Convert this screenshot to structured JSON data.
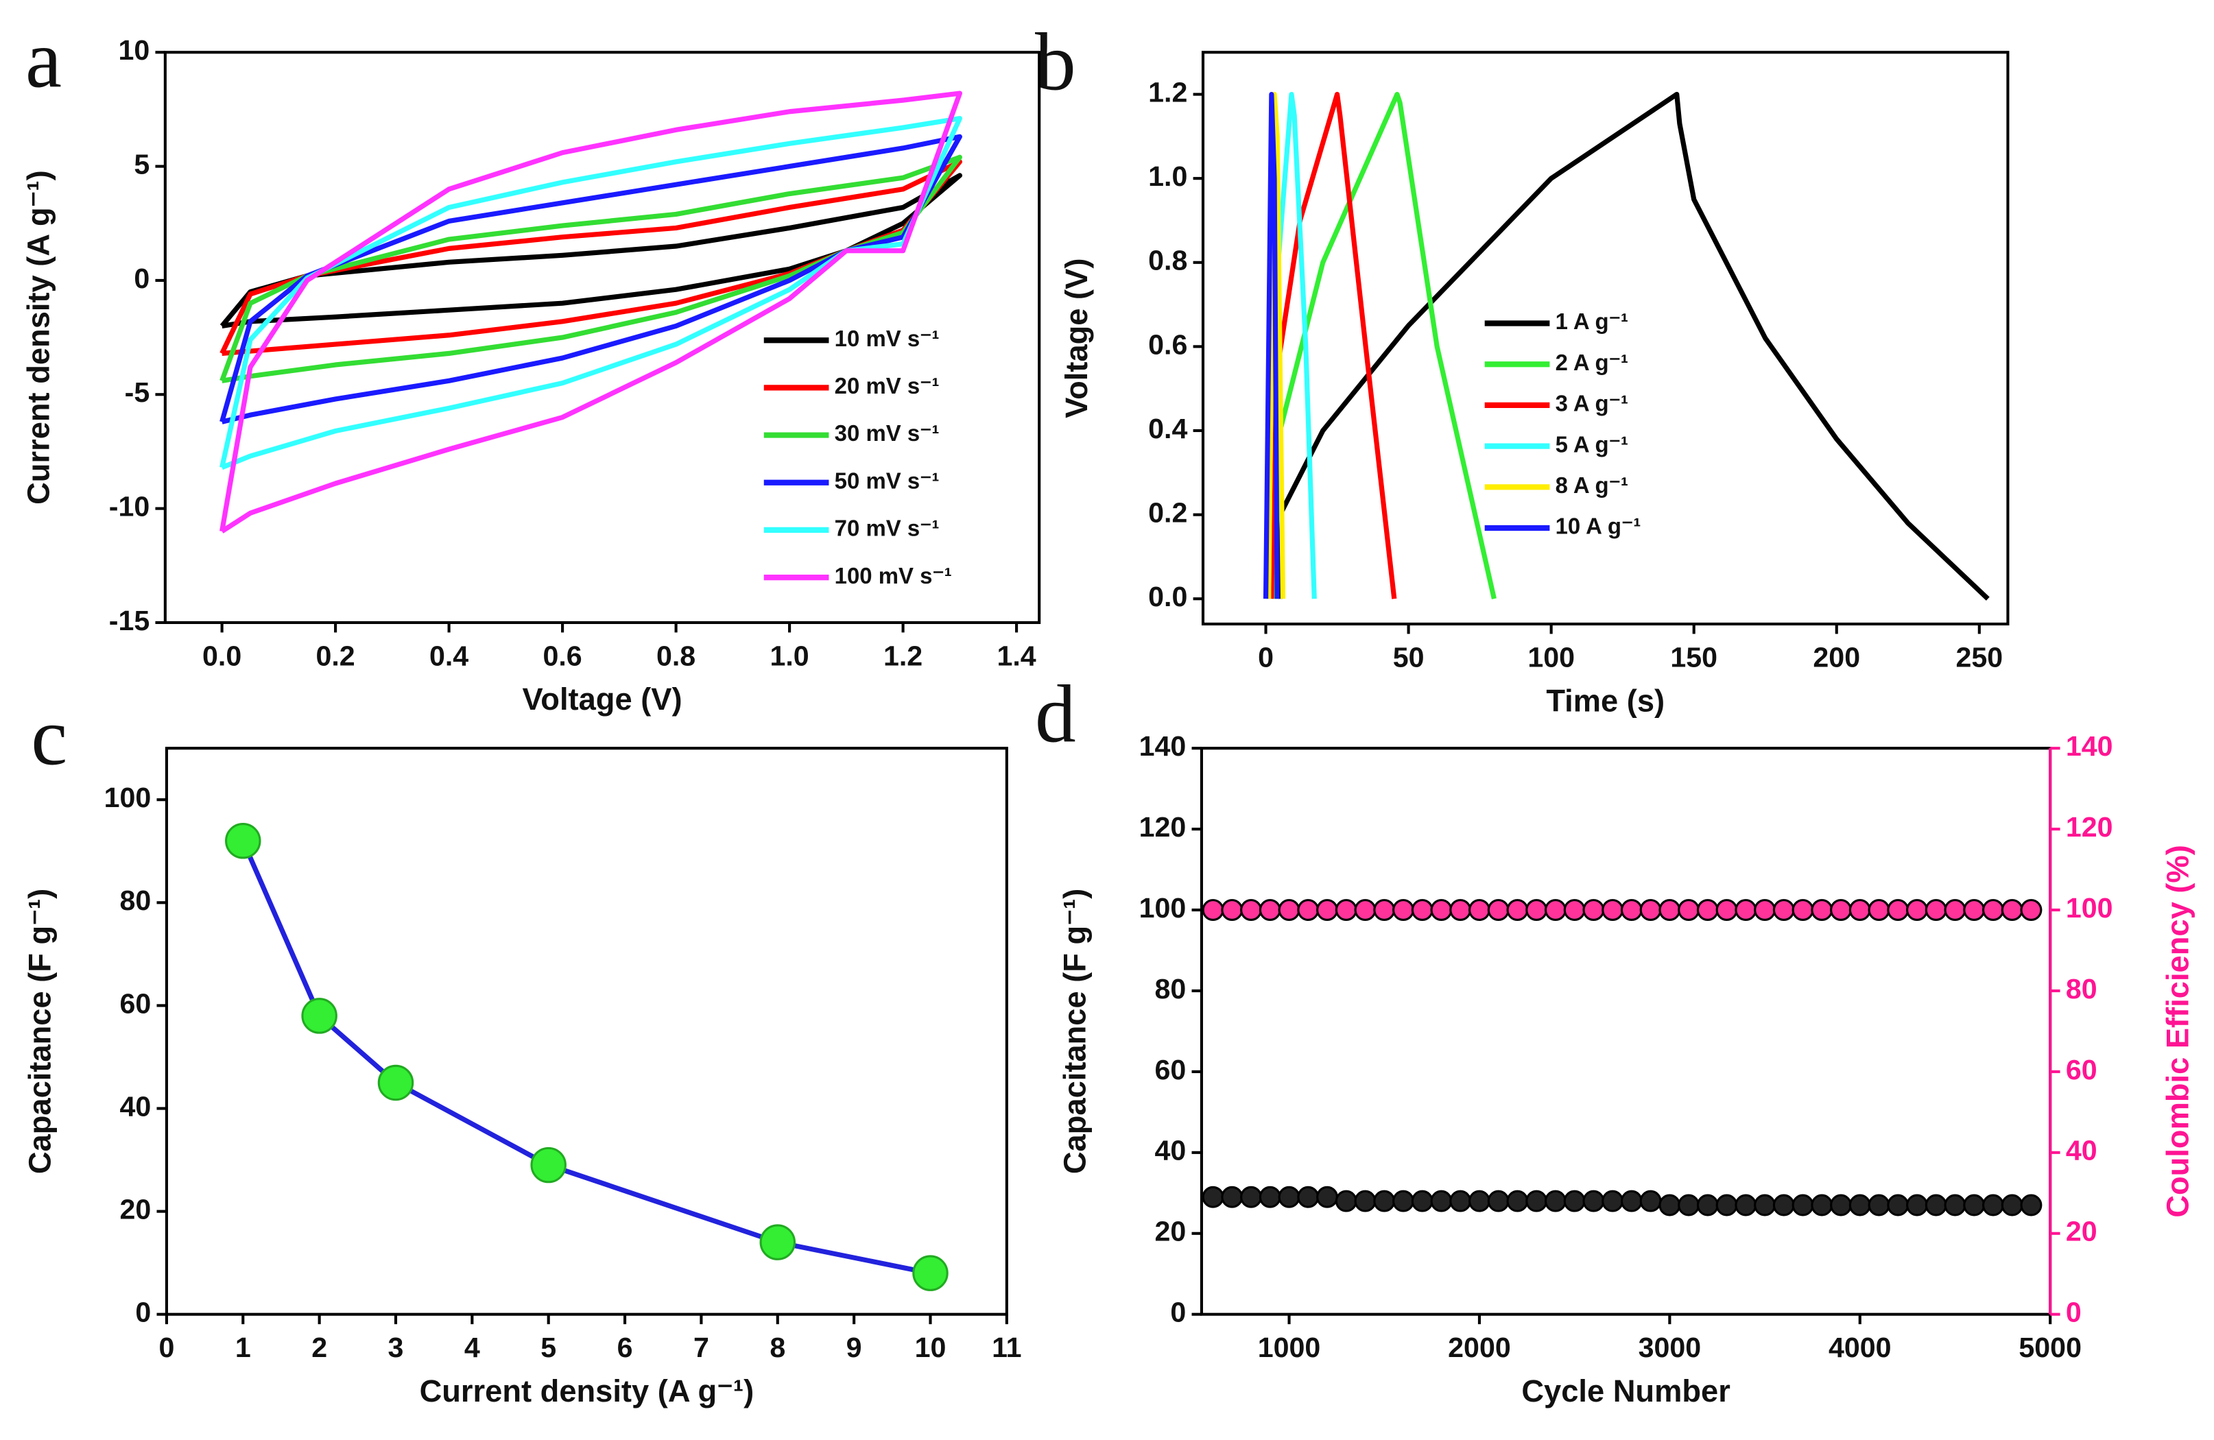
{
  "chart_data": [
    {
      "type": "line",
      "panel": "a",
      "xlabel": "Voltage (V)",
      "ylabel": "Current density (A g⁻¹)",
      "xlim": [
        -0.1,
        1.44
      ],
      "ylim": [
        -15,
        10
      ],
      "xticks": [
        {
          "value": 0,
          "label": "0.0"
        },
        0.2,
        0.4,
        0.6,
        0.8,
        {
          "value": 1,
          "label": "1.0"
        },
        1.2,
        1.4
      ],
      "yticks": [
        -15,
        -10,
        -5,
        0,
        5,
        10
      ],
      "grid": false,
      "legend": "lower right",
      "x": [
        0,
        0.05,
        0.15,
        0.4,
        0.6,
        0.8,
        1.0,
        1.2,
        1.3,
        1.2,
        1.1,
        1.0,
        0.8,
        0.6,
        0.4,
        0.2,
        0.05,
        0
      ],
      "series": [
        {
          "name": "10 mV s⁻¹",
          "color": "#000000",
          "values": [
            -2,
            -0.5,
            0.2,
            0.8,
            1.1,
            1.5,
            2.3,
            3.2,
            4.6,
            2.5,
            1.3,
            0.5,
            -0.4,
            -1.0,
            -1.3,
            -1.6,
            -1.8,
            -2
          ]
        },
        {
          "name": "20 mV s⁻¹",
          "color": "#ff0000",
          "values": [
            -3.2,
            -0.6,
            0.2,
            1.4,
            1.9,
            2.3,
            3.2,
            4.0,
            5.2,
            2.2,
            1.3,
            0.3,
            -1.0,
            -1.8,
            -2.4,
            -2.8,
            -3.1,
            -3.2
          ]
        },
        {
          "name": "30 mV s⁻¹",
          "color": "#33dd33",
          "values": [
            -4.4,
            -1.0,
            0.2,
            1.8,
            2.4,
            2.9,
            3.8,
            4.5,
            5.4,
            2.1,
            1.3,
            0.2,
            -1.4,
            -2.5,
            -3.2,
            -3.7,
            -4.2,
            -4.4
          ]
        },
        {
          "name": "50 mV s⁻¹",
          "color": "#1a1aff",
          "values": [
            -6.2,
            -1.8,
            0.2,
            2.6,
            3.4,
            4.2,
            5.0,
            5.8,
            6.3,
            1.9,
            1.3,
            0,
            -2.0,
            -3.4,
            -4.4,
            -5.2,
            -5.9,
            -6.2
          ]
        },
        {
          "name": "70 mV s⁻¹",
          "color": "#33ffff",
          "values": [
            -8.2,
            -2.6,
            0.1,
            3.2,
            4.3,
            5.2,
            6.0,
            6.7,
            7.1,
            1.6,
            1.3,
            -0.4,
            -2.8,
            -4.5,
            -5.6,
            -6.6,
            -7.7,
            -8.2
          ]
        },
        {
          "name": "100 mV s⁻¹",
          "color": "#ff33ff",
          "values": [
            -11,
            -3.8,
            0,
            4.0,
            5.6,
            6.6,
            7.4,
            7.9,
            8.2,
            1.3,
            1.3,
            -0.8,
            -3.6,
            -6.0,
            -7.4,
            -8.9,
            -10.2,
            -11
          ]
        }
      ]
    },
    {
      "type": "line",
      "panel": "b",
      "xlabel": "Time (s)",
      "ylabel": "Voltage (V)",
      "xlim": [
        -22,
        260
      ],
      "ylim": [
        -0.06,
        1.3
      ],
      "xticks": [
        0,
        50,
        100,
        150,
        200,
        250
      ],
      "yticks": [
        {
          "value": 0,
          "label": "0.0"
        },
        0.2,
        0.4,
        0.6,
        0.8,
        {
          "value": 1,
          "label": "1.0"
        },
        1.2
      ],
      "grid": false,
      "legend": "center",
      "series": [
        {
          "name": "1 A g⁻¹",
          "color": "#000000",
          "x": [
            5,
            5,
            20,
            50,
            100,
            144,
            145,
            150,
            175,
            200,
            225,
            253
          ],
          "values": [
            0,
            0.2,
            0.4,
            0.65,
            1.0,
            1.2,
            1.13,
            0.95,
            0.62,
            0.38,
            0.18,
            0
          ]
        },
        {
          "name": "2 A g⁻¹",
          "color": "#33ee33",
          "x": [
            3,
            5,
            20,
            46,
            47,
            60,
            80
          ],
          "values": [
            0,
            0.4,
            0.8,
            1.2,
            1.18,
            0.6,
            0
          ]
        },
        {
          "name": "3 A g⁻¹",
          "color": "#ff0000",
          "x": [
            2,
            3,
            12,
            25,
            26,
            35,
            45
          ],
          "values": [
            0,
            0.5,
            0.9,
            1.2,
            1.15,
            0.6,
            0
          ]
        },
        {
          "name": "5 A g⁻¹",
          "color": "#33ffff",
          "x": [
            1,
            2,
            9,
            10,
            14,
            17
          ],
          "values": [
            0,
            0.6,
            1.2,
            1.15,
            0.6,
            0
          ]
        },
        {
          "name": "8 A g⁻¹",
          "color": "#ffee00",
          "x": [
            1,
            3,
            4,
            6
          ],
          "values": [
            0,
            1.2,
            1.1,
            0
          ]
        },
        {
          "name": "10 A g⁻¹",
          "color": "#1a1aff",
          "x": [
            0,
            2,
            3,
            4
          ],
          "values": [
            0,
            1.2,
            1.0,
            0
          ]
        }
      ]
    },
    {
      "type": "line",
      "panel": "c",
      "xlabel": "Current density (A g⁻¹)",
      "ylabel": "Capacitance (F g⁻¹)",
      "xlim": [
        0,
        11
      ],
      "ylim": [
        0,
        110
      ],
      "xticks": [
        0,
        1,
        2,
        3,
        4,
        5,
        6,
        7,
        8,
        9,
        10,
        11
      ],
      "yticks": [
        0,
        20,
        40,
        60,
        80,
        100
      ],
      "grid": false,
      "markers": true,
      "marker_color": "#33ee33",
      "series": [
        {
          "color": "#2222dd",
          "x": [
            1,
            2,
            3,
            5,
            8,
            10
          ],
          "values": [
            92,
            58,
            45,
            29,
            14,
            8
          ]
        }
      ]
    },
    {
      "type": "scatter",
      "panel": "d",
      "xlabel": "Cycle Number",
      "ylabel": "Capacitance (F g⁻¹)",
      "y2label": "Coulombic Efficiency (%)",
      "xlim": [
        540,
        5000
      ],
      "ylim": [
        0,
        140
      ],
      "y2lim": [
        0,
        140
      ],
      "xticks": [
        1000,
        2000,
        3000,
        4000,
        5000
      ],
      "yticks": [
        0,
        20,
        40,
        60,
        80,
        100,
        120,
        140
      ],
      "y2ticks": [
        0,
        20,
        40,
        60,
        80,
        100,
        120,
        140
      ],
      "grid": false,
      "y2color": "#ff1493",
      "x": [
        600,
        700,
        800,
        900,
        1000,
        1100,
        1200,
        1300,
        1400,
        1500,
        1600,
        1700,
        1800,
        1900,
        2000,
        2100,
        2200,
        2300,
        2400,
        2500,
        2600,
        2700,
        2800,
        2900,
        3000,
        3100,
        3200,
        3300,
        3400,
        3500,
        3600,
        3700,
        3800,
        3900,
        4000,
        4100,
        4200,
        4300,
        4400,
        4500,
        4600,
        4700,
        4800,
        4900
      ],
      "series": [
        {
          "color": "#222222",
          "values": [
            29,
            29,
            29,
            29,
            29,
            29,
            29,
            28,
            28,
            28,
            28,
            28,
            28,
            28,
            28,
            28,
            28,
            28,
            28,
            28,
            28,
            28,
            28,
            28,
            27,
            27,
            27,
            27,
            27,
            27,
            27,
            27,
            27,
            27,
            27,
            27,
            27,
            27,
            27,
            27,
            27,
            27,
            27,
            27
          ]
        },
        {
          "color": "#ff3399",
          "axis": "y2",
          "values": [
            100,
            100,
            100,
            100,
            100,
            100,
            100,
            100,
            100,
            100,
            100,
            100,
            100,
            100,
            100,
            100,
            100,
            100,
            100,
            100,
            100,
            100,
            100,
            100,
            100,
            100,
            100,
            100,
            100,
            100,
            100,
            100,
            100,
            100,
            100,
            100,
            100,
            100,
            100,
            100,
            100,
            100,
            100,
            100
          ]
        }
      ]
    }
  ]
}
